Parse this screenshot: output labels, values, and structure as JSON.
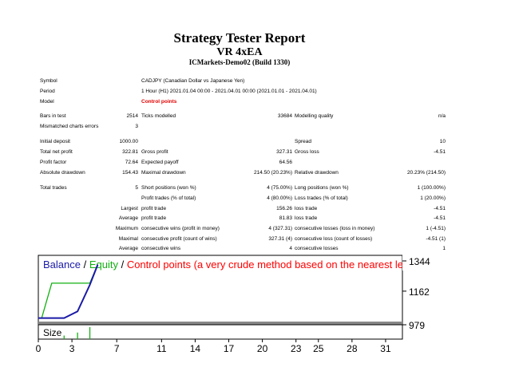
{
  "report": {
    "title": "Strategy Tester Report",
    "expert": "VR 4xEA",
    "server": "ICMarkets-Demo02 (Build 1330)"
  },
  "settings": {
    "symbol_label": "Symbol",
    "symbol_value": "CADJPY (Canadian Dollar vs Japanese Yen)",
    "period_label": "Period",
    "period_value": "1 Hour (H1) 2021.01.04 00:00 - 2021.04.01 00:00 (2021.01.01 - 2021.04.01)",
    "model_label": "Model",
    "model_value": "Control points"
  },
  "stats": {
    "bars_label": "Bars in test",
    "bars_value": "2514",
    "ticks_label": "Ticks modelled",
    "ticks_value": "33684",
    "quality_label": "Modelling quality",
    "quality_value": "n/a",
    "mismatch_label": "Mismatched charts errors",
    "mismatch_value": "3",
    "deposit_label": "Initial deposit",
    "deposit_value": "1000.00",
    "spread_label": "Spread",
    "spread_value": "10",
    "netprofit_label": "Total net profit",
    "netprofit_value": "322.81",
    "grossprofit_label": "Gross profit",
    "grossprofit_value": "327.31",
    "grossloss_label": "Gross loss",
    "grossloss_value": "-4.51",
    "pf_label": "Profit factor",
    "pf_value": "72.64",
    "payoff_label": "Expected payoff",
    "payoff_value": "64.56",
    "absdd_label": "Absolute drawdown",
    "absdd_value": "154.43",
    "maxdd_label": "Maximal drawdown",
    "maxdd_value": "214.50 (20.23%)",
    "reldd_label": "Relative drawdown",
    "reldd_value": "20.23% (214.50)",
    "trades_label": "Total trades",
    "trades_value": "5",
    "short_label": "Short positions (won %)",
    "short_value": "4 (75.00%)",
    "long_label": "Long positions (won %)",
    "long_value": "1 (100.00%)",
    "ptrades_label": "Profit trades (% of total)",
    "ptrades_value": "4 (80.00%)",
    "ltrades_label": "Loss trades (% of total)",
    "ltrades_value": "1 (20.00%)",
    "largest_label": "Largest",
    "average_label": "Average",
    "maximum_label": "Maximum",
    "maximal_label": "Maximal",
    "profittrade_label": "profit trade",
    "losstrade_label": "loss trade",
    "largest_profit": "156.26",
    "largest_loss": "-4.51",
    "average_profit": "81.83",
    "average_loss": "-4.51",
    "cw_money_label": "consecutive wins (profit in money)",
    "cw_money_value": "4 (327.31)",
    "cl_money_label": "consecutive losses (loss in money)",
    "cl_money_value": "1 (-4.51)",
    "cp_count_label": "consecutive profit (count of wins)",
    "cp_count_value": "327.31 (4)",
    "cl_count_label": "consecutive loss (count of losses)",
    "cl_count_value": "-4.51 (1)",
    "cw_label": "consecutive wins",
    "cw_value": "4",
    "clo_label": "consecutive losses",
    "clo_value": "1"
  },
  "chart": {
    "legend_balance": "Balance",
    "legend_sep1": " / ",
    "legend_equity": "Equity",
    "legend_sep2": " / ",
    "legend_note": "Control points (a very crude method based on the nearest less timef",
    "size_label": "Size",
    "colors": {
      "balance": "#1a1aa8",
      "equity": "#12b012",
      "note": "#ff0000",
      "size": "#12b012"
    }
  },
  "chart_data": {
    "type": "line",
    "yticks": [
      "1344",
      "1162",
      "979"
    ],
    "xticks": [
      "0",
      "3",
      "7",
      "11",
      "14",
      "17",
      "20",
      "23",
      "25",
      "28",
      "31"
    ],
    "ylim": [
      979,
      1344
    ],
    "xlim": [
      0,
      32.5
    ],
    "series": [
      {
        "name": "Balance",
        "x": [
          0,
          0.3,
          2.3,
          3.5,
          4.6,
          5.3
        ],
        "y": [
          1000,
          1000,
          1000,
          1040,
          1200,
          1322
        ]
      },
      {
        "name": "Equity",
        "x": [
          0,
          0.3,
          1.2,
          4.6,
          5.3
        ],
        "y": [
          1000,
          1000,
          1210,
          1210,
          1322
        ]
      }
    ],
    "size_bars": {
      "x": [
        2.3,
        3.5,
        4.6
      ],
      "h": [
        0.3,
        0.55,
        1.0
      ]
    }
  }
}
